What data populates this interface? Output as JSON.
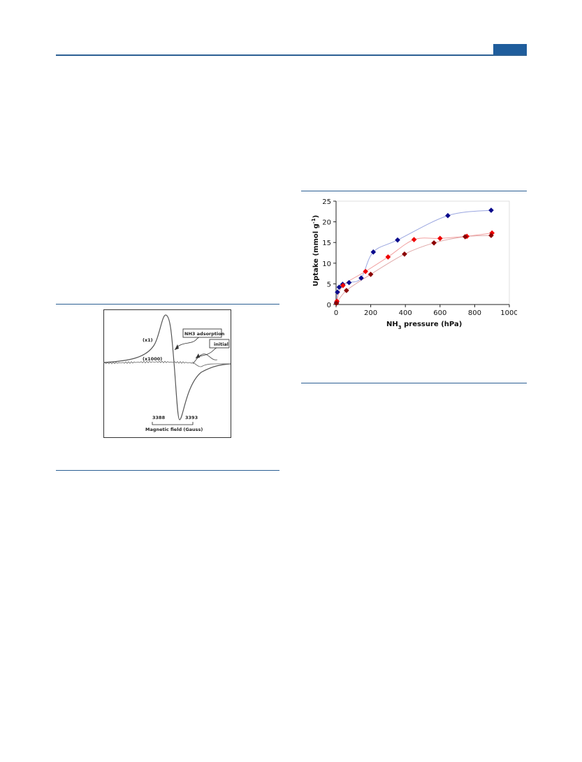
{
  "figures": {
    "epr": {
      "labels": {
        "x1": "(x1)",
        "x1000": "(x1000)",
        "nh3_adsorption": "NH3 adsorption",
        "initial": "initial",
        "tick_left": "3388",
        "tick_right": "3393",
        "xlabel": "Magnetic field (Gauss)"
      }
    },
    "uptake": {
      "chart_data": {
        "type": "scatter",
        "xlabel": "NH3 pressure (hPa)",
        "ylabel": "Uptake (mmol g-1)",
        "xlim": [
          0,
          1000
        ],
        "ylim": [
          0,
          25
        ],
        "x_ticks": [
          "0",
          "200",
          "400",
          "600",
          "800",
          "1000"
        ],
        "y_ticks": [
          "0",
          "5",
          "10",
          "15",
          "20",
          "25"
        ],
        "grid": false,
        "series": [
          {
            "color": "#0a0a8c",
            "line_color": "#9aa6e0",
            "points": [
              [
                3,
                0.5
              ],
              [
                8,
                3
              ],
              [
                18,
                4.2
              ],
              [
                38,
                4.9
              ],
              [
                75,
                5.3
              ],
              [
                145,
                6.4
              ],
              [
                215,
                12.7
              ],
              [
                355,
                15.6
              ],
              [
                645,
                21.5
              ],
              [
                895,
                22.8
              ]
            ]
          },
          {
            "color": "#ee0000",
            "line_color": "#f2a0a0",
            "points": [
              [
                5,
                0.8
              ],
              [
                40,
                4.6
              ],
              [
                170,
                8.0
              ],
              [
                300,
                11.5
              ],
              [
                450,
                15.7
              ],
              [
                600,
                16.0
              ],
              [
                755,
                16.5
              ],
              [
                900,
                17.3
              ]
            ]
          },
          {
            "color": "#8b0000",
            "line_color": "#e0a8a8",
            "points": [
              [
                2,
                0.3
              ],
              [
                60,
                3.4
              ],
              [
                200,
                7.3
              ],
              [
                395,
                12.2
              ],
              [
                565,
                14.9
              ],
              [
                745,
                16.4
              ],
              [
                895,
                16.7
              ]
            ]
          }
        ]
      }
    }
  }
}
